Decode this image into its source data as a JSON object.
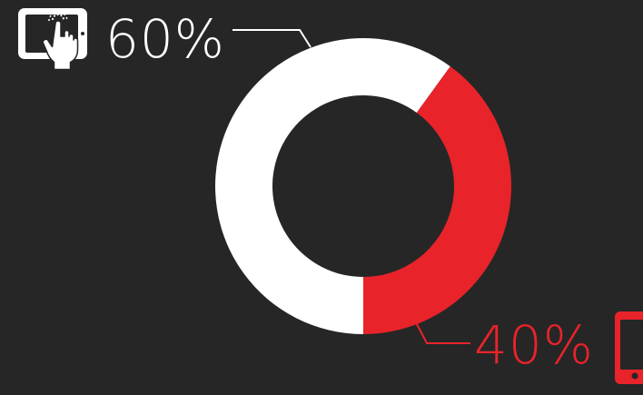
{
  "chart_data": {
    "type": "pie",
    "donut": true,
    "title": "",
    "slices": [
      {
        "label": "60%",
        "value": 60,
        "color": "#ffffff",
        "icon": "tablet-touch-icon"
      },
      {
        "label": "40%",
        "value": 40,
        "color": "#e8232a",
        "icon": "smartphone-icon"
      }
    ],
    "background": "#262626",
    "legend": "none"
  }
}
